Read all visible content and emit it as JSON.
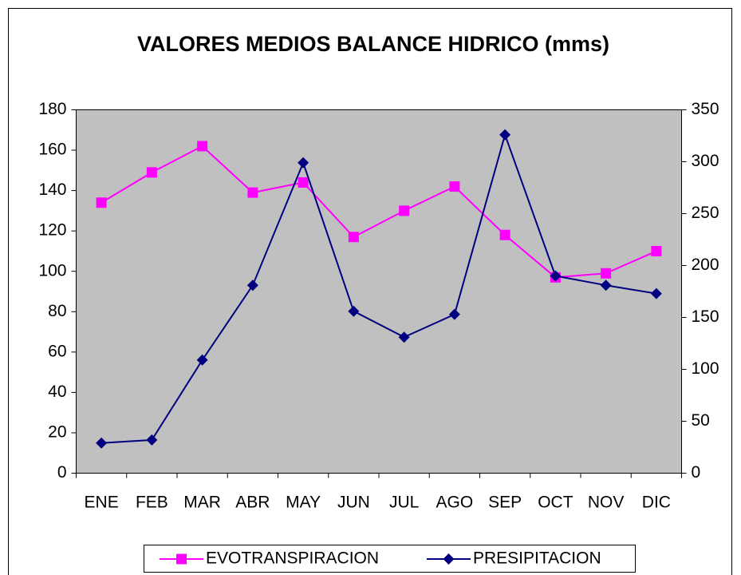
{
  "chart_data": {
    "type": "line",
    "title": "VALORES MEDIOS BALANCE HIDRICO (mms)",
    "categories": [
      "ENE",
      "FEB",
      "MAR",
      "ABR",
      "MAY",
      "JUN",
      "JUL",
      "AGO",
      "SEP",
      "OCT",
      "NOV",
      "DIC"
    ],
    "series": [
      {
        "name": "EVOTRANSPIRACION",
        "color": "#ff00ff",
        "marker": "square",
        "values": [
          134,
          149,
          162,
          139,
          144,
          117,
          130,
          142,
          118,
          97,
          99,
          110
        ]
      },
      {
        "name": "PRESIPITACION",
        "color": "#000080",
        "marker": "diamond",
        "axis": "y2",
        "values": [
          29,
          32,
          109,
          181,
          299,
          156,
          131,
          153,
          326,
          190,
          181,
          173
        ]
      }
    ],
    "ylim": [
      0,
      180
    ],
    "yticks": [
      0,
      20,
      40,
      60,
      80,
      100,
      120,
      140,
      160,
      180
    ],
    "y2lim": [
      0,
      350
    ],
    "y2ticks": [
      0,
      50,
      100,
      150,
      200,
      250,
      300,
      350
    ],
    "legend": "bottom"
  }
}
